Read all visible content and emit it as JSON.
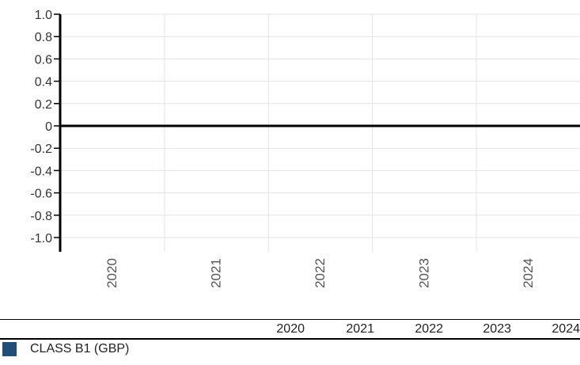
{
  "chart_data": {
    "type": "bar",
    "categories": [
      "2020",
      "2021",
      "2022",
      "2023",
      "2024"
    ],
    "series": [
      {
        "name": "CLASS B1 (GBP)",
        "values": [
          null,
          null,
          null,
          null,
          null
        ],
        "color": "#1f4e79"
      }
    ],
    "ylim": [
      -1.0,
      1.0
    ],
    "y_ticks": [
      "1.0",
      "0.8",
      "0.6",
      "0.4",
      "0.2",
      "0",
      "-0.2",
      "-0.4",
      "-0.6",
      "-0.8",
      "-1.0"
    ],
    "grid": true,
    "legend": "bottom-table"
  },
  "table": {
    "header_blank": "",
    "columns": [
      "2020",
      "2021",
      "2022",
      "2023",
      "2024"
    ],
    "rows": [
      {
        "label": "CLASS B1 (GBP)",
        "values": [
          "",
          "",
          "",
          "",
          ""
        ]
      }
    ]
  }
}
